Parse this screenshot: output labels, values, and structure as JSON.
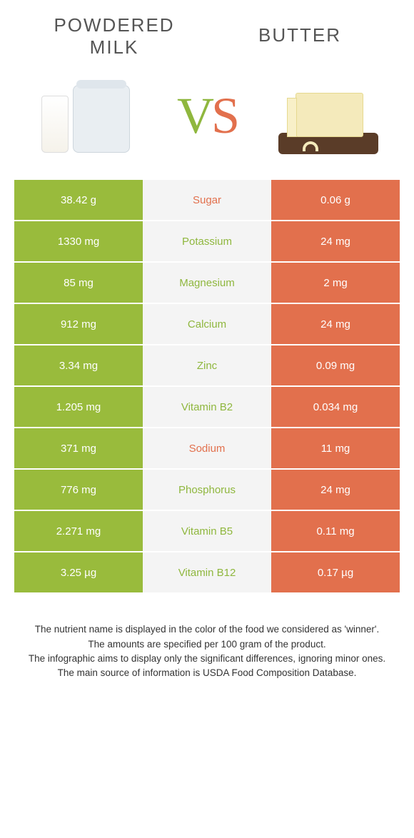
{
  "food_left": {
    "title_line1": "POWDERED",
    "title_line2": "MILK"
  },
  "food_right": {
    "title": "BUTTER"
  },
  "vs": {
    "v": "V",
    "s": "S"
  },
  "colors": {
    "left_bg": "#99bb3c",
    "right_bg": "#e2704d",
    "mid_bg": "#f4f4f4",
    "left_text": "#ffffff",
    "right_text": "#ffffff",
    "winner_left_label": "#8fb73e",
    "winner_right_label": "#e2704d"
  },
  "rows": [
    {
      "left": "38.42 g",
      "label": "Sugar",
      "right": "0.06 g",
      "winner": "right"
    },
    {
      "left": "1330 mg",
      "label": "Potassium",
      "right": "24 mg",
      "winner": "left"
    },
    {
      "left": "85 mg",
      "label": "Magnesium",
      "right": "2 mg",
      "winner": "left"
    },
    {
      "left": "912 mg",
      "label": "Calcium",
      "right": "24 mg",
      "winner": "left"
    },
    {
      "left": "3.34 mg",
      "label": "Zinc",
      "right": "0.09 mg",
      "winner": "left"
    },
    {
      "left": "1.205 mg",
      "label": "Vitamin B2",
      "right": "0.034 mg",
      "winner": "left"
    },
    {
      "left": "371 mg",
      "label": "Sodium",
      "right": "11 mg",
      "winner": "right"
    },
    {
      "left": "776 mg",
      "label": "Phosphorus",
      "right": "24 mg",
      "winner": "left"
    },
    {
      "left": "2.271 mg",
      "label": "Vitamin B5",
      "right": "0.11 mg",
      "winner": "left"
    },
    {
      "left": "3.25 µg",
      "label": "Vitamin B12",
      "right": "0.17 µg",
      "winner": "left"
    }
  ],
  "footer": {
    "line1": "The nutrient name is displayed in the color of the food we considered as 'winner'.",
    "line2": "The amounts are specified per 100 gram of the product.",
    "line3": "The infographic aims to display only the significant differences, ignoring minor ones.",
    "line4": "The main source of information is USDA Food Composition Database."
  }
}
